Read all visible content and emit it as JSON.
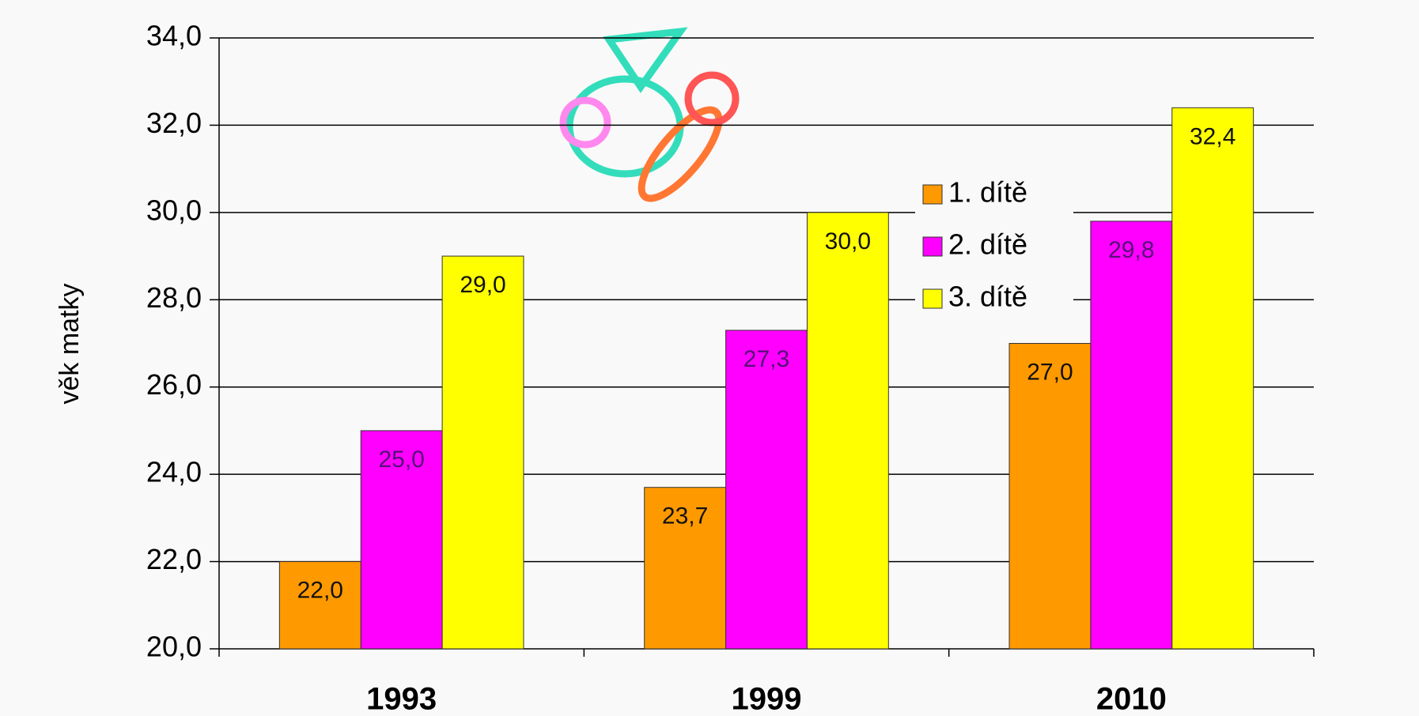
{
  "chart_data": {
    "type": "bar",
    "y_label": "věk matky",
    "categories": [
      "1993",
      "1999",
      "2010"
    ],
    "series": [
      {
        "name": "1. dítě",
        "color": "#ff9900",
        "values": [
          22.0,
          23.7,
          27.0
        ],
        "value_labels": [
          "22,0",
          "23,7",
          "27,0"
        ]
      },
      {
        "name": "2. dítě",
        "color": "#ff00ff",
        "values": [
          25.0,
          27.3,
          29.8
        ],
        "value_labels": [
          "25,0",
          "27,3",
          "29,8"
        ]
      },
      {
        "name": "3. dítě",
        "color": "#ffff00",
        "values": [
          29.0,
          30.0,
          32.4
        ],
        "value_labels": [
          "29,0",
          "30,0",
          "32,4"
        ]
      }
    ],
    "ylim": [
      20,
      34
    ],
    "yticks": [
      {
        "value": 20,
        "label": "20,0"
      },
      {
        "value": 22,
        "label": "22,0"
      },
      {
        "value": 24,
        "label": "24,0"
      },
      {
        "value": 26,
        "label": "26,0"
      },
      {
        "value": 28,
        "label": "28,0"
      },
      {
        "value": 30,
        "label": "30,0"
      },
      {
        "value": 32,
        "label": "32,0"
      },
      {
        "value": 34,
        "label": "34,0"
      }
    ],
    "grid": true,
    "legend": "center"
  }
}
